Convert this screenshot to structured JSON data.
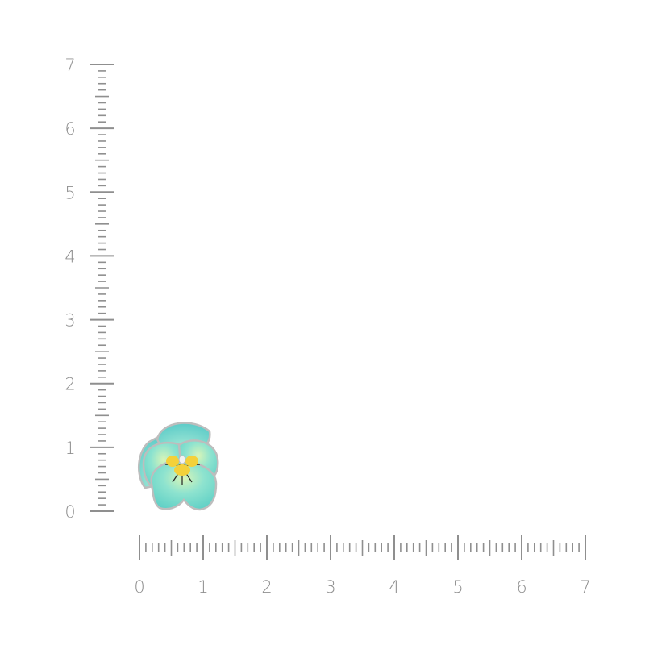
{
  "ruler": {
    "min": 0,
    "max": 7,
    "minor_step": 0.1,
    "labels": [
      "0",
      "1",
      "2",
      "3",
      "4",
      "5",
      "6",
      "7"
    ],
    "tick_color": "#8f8f8f"
  },
  "product": {
    "petal_color": "#7fdcd0",
    "center_color": "#f4d13a",
    "outline_color": "#c8c8c8"
  }
}
